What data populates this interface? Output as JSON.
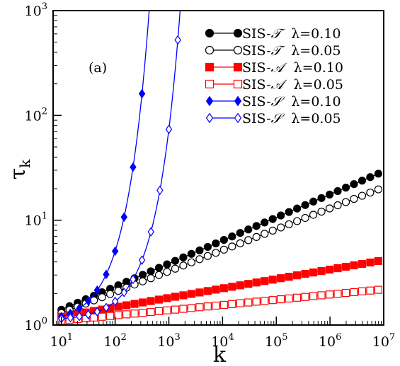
{
  "chart_data": {
    "type": "line",
    "title": "",
    "panel_label": "(a)",
    "xlabel": "k",
    "ylabel": {
      "main": "τ",
      "sub": "k"
    },
    "x_scale": "log",
    "y_scale": "log",
    "xlim": [
      7,
      10000000
    ],
    "ylim": [
      1,
      1000
    ],
    "x_ticks": [
      {
        "base": "10",
        "exp": "1",
        "value": 10
      },
      {
        "base": "10",
        "exp": "2",
        "value": 100
      },
      {
        "base": "10",
        "exp": "3",
        "value": 1000
      },
      {
        "base": "10",
        "exp": "4",
        "value": 10000
      },
      {
        "base": "10",
        "exp": "5",
        "value": 100000
      },
      {
        "base": "10",
        "exp": "6",
        "value": 1000000
      },
      {
        "base": "10",
        "exp": "7",
        "value": 10000000
      }
    ],
    "y_ticks": [
      {
        "base": "10",
        "exp": "0",
        "value": 1
      },
      {
        "base": "10",
        "exp": "1",
        "value": 10
      },
      {
        "base": "10",
        "exp": "2",
        "value": 100
      },
      {
        "base": "10",
        "exp": "3",
        "value": 1000
      }
    ],
    "legend_position": "top-right",
    "grid": false,
    "series": [
      {
        "name": "SIS-𝒯  λ=0.10",
        "label": {
          "prefix": "SIS-",
          "script": "𝒯",
          "param": "λ=0.10"
        },
        "color": "#000000",
        "marker": "circle",
        "filled": true,
        "kmin_exp": 1,
        "kmax_exp": 6.9,
        "n_markers": 40,
        "curve": "power",
        "y0": 1.4,
        "alpha": 0.22
      },
      {
        "name": "SIS-𝒯  λ=0.05",
        "label": {
          "prefix": "SIS-",
          "script": "𝒯",
          "param": "λ=0.05"
        },
        "color": "#000000",
        "marker": "circle",
        "filled": false,
        "kmin_exp": 1,
        "kmax_exp": 6.9,
        "n_markers": 40,
        "curve": "power",
        "y0": 1.3,
        "alpha": 0.2
      },
      {
        "name": "SIS-𝒜  λ=0.10",
        "label": {
          "prefix": "SIS-",
          "script": "𝒜",
          "param": "λ=0.10"
        },
        "color": "#ff0000",
        "marker": "square",
        "filled": true,
        "kmin_exp": 1,
        "kmax_exp": 6.9,
        "n_markers": 40,
        "curve": "power",
        "y0": 1.2,
        "alpha": 0.09
      },
      {
        "name": "SIS-𝒜  λ=0.05",
        "label": {
          "prefix": "SIS-",
          "script": "𝒜",
          "param": "λ=0.05"
        },
        "color": "#ff0000",
        "marker": "square",
        "filled": false,
        "kmin_exp": 1,
        "kmax_exp": 6.9,
        "n_markers": 40,
        "curve": "power",
        "y0": 1.1,
        "alpha": 0.05
      },
      {
        "name": "SIS-𝒮  λ=0.10",
        "label": {
          "prefix": "SIS-",
          "script": "𝒮",
          "param": "λ=0.10"
        },
        "color": "#0000ff",
        "marker": "diamond",
        "filled": true,
        "kmin_exp": 1,
        "kmax_exp": 3.0,
        "n_markers": 13,
        "curve": "exp",
        "y0": 1.2,
        "a": 0.016
      },
      {
        "name": "SIS-𝒮  λ=0.05",
        "label": {
          "prefix": "SIS-",
          "script": "𝒮",
          "param": "λ=0.05"
        },
        "color": "#0000ff",
        "marker": "diamond",
        "filled": false,
        "kmin_exp": 1,
        "kmax_exp": 3.5,
        "n_markers": 16,
        "curve": "exp",
        "y0": 1.15,
        "a": 0.0042
      }
    ]
  }
}
